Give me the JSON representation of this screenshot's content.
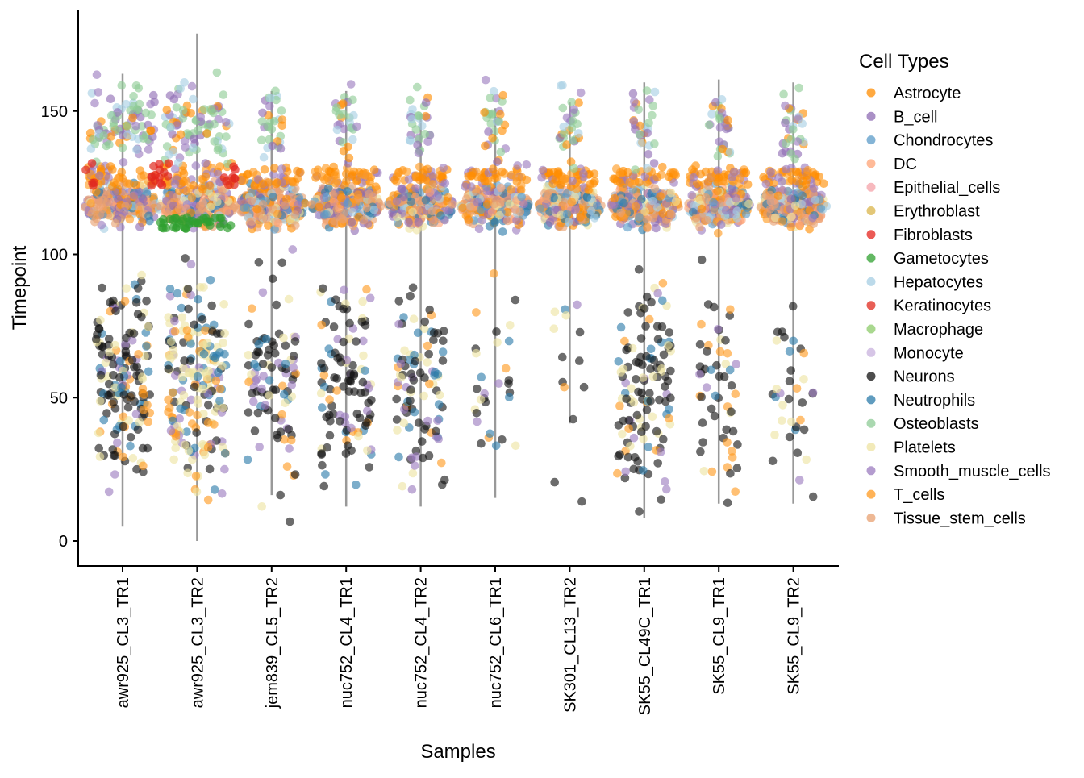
{
  "chart_data": {
    "type": "scatter",
    "subtype": "beeswarm",
    "xlabel": "Samples",
    "ylabel": "Timepoint",
    "legend_title": "Cell Types",
    "legend_position": "right",
    "ylim": [
      -9,
      187
    ],
    "yticks": [
      0,
      50,
      100,
      150
    ],
    "grid": false,
    "categories": [
      "awr925_CL3_TR1",
      "awr925_CL3_TR2",
      "jem839_CL5_TR2",
      "nuc752_CL4_TR1",
      "nuc752_CL4_TR2",
      "nuc752_CL6_TR1",
      "SK301_CL13_TR2",
      "SK55_CL49C_TR1",
      "SK55_CL9_TR1",
      "SK55_CL9_TR2"
    ],
    "sample_ranges": [
      [
        5,
        163
      ],
      [
        0,
        177
      ],
      [
        16,
        157
      ],
      [
        12,
        157
      ],
      [
        12,
        149
      ],
      [
        15,
        151
      ],
      [
        41,
        153
      ],
      [
        8,
        160
      ],
      [
        13,
        161
      ],
      [
        13,
        160
      ]
    ],
    "cell_types": [
      {
        "name": "Astrocyte",
        "color": "#FF8C00"
      },
      {
        "name": "B_cell",
        "color": "#8E6BB3"
      },
      {
        "name": "Chondrocytes",
        "color": "#5B9BC8"
      },
      {
        "name": "DC",
        "color": "#FFA375"
      },
      {
        "name": "Epithelial_cells",
        "color": "#F4A2A8"
      },
      {
        "name": "Erythroblast",
        "color": "#D9B44A"
      },
      {
        "name": "Fibroblasts",
        "color": "#E4231C"
      },
      {
        "name": "Gametocytes",
        "color": "#2FA02F"
      },
      {
        "name": "Hepatocytes",
        "color": "#A6CEE3"
      },
      {
        "name": "Keratinocytes",
        "color": "#E02A1E"
      },
      {
        "name": "Macrophage",
        "color": "#8CCB6A"
      },
      {
        "name": "Monocyte",
        "color": "#C8B2DE"
      },
      {
        "name": "Neurons",
        "color": "#111111"
      },
      {
        "name": "Neutrophils",
        "color": "#2B7BAA"
      },
      {
        "name": "Osteoblasts",
        "color": "#8ECB95"
      },
      {
        "name": "Platelets",
        "color": "#EEE3A2"
      },
      {
        "name": "Smooth_muscle_cells",
        "color": "#9B7BBF"
      },
      {
        "name": "T_cells",
        "color": "#FF9A1F"
      },
      {
        "name": "Tissue_stem_cells",
        "color": "#E8A070"
      }
    ]
  }
}
